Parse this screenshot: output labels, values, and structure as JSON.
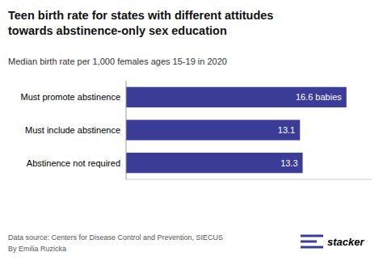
{
  "chart_data": {
    "type": "bar",
    "orientation": "horizontal",
    "title": "Teen birth rate for states with different attitudes\ntowards abstinence-only sex education",
    "subtitle": "Median birth rate per 1,000 females ages 15-19 in 2020",
    "categories": [
      "Must promote abstinence",
      "Must include abstinence",
      "Abstinence not required"
    ],
    "values": [
      16.6,
      13.1,
      13.3
    ],
    "value_labels": [
      "16.6 babies",
      "13.1",
      "13.3"
    ],
    "data_labels": true,
    "color": "#3B3B98",
    "xlim": [
      0,
      18.5
    ],
    "tick_labels": "y",
    "grid": false,
    "annotations": [
      "Data source: Centers for Disease Control and Prevention, SIECUS",
      "By Emilia Ruzicka",
      "stacker"
    ]
  }
}
